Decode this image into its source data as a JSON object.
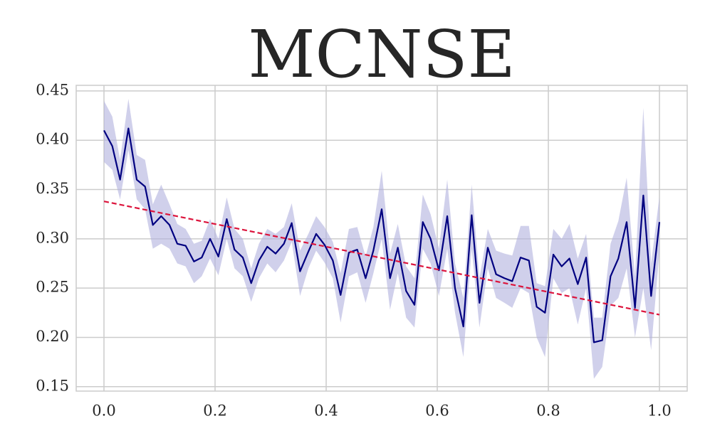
{
  "chart_data": {
    "type": "line",
    "title": "MCNSE",
    "xlim": [
      -0.05,
      1.05
    ],
    "ylim": [
      0.1455,
      0.4557
    ],
    "xticks": [
      {
        "value": 0,
        "label": "0.0"
      },
      {
        "value": 0.2,
        "label": "0.2"
      },
      {
        "value": 0.4,
        "label": "0.4"
      },
      {
        "value": 0.6,
        "label": "0.6"
      },
      {
        "value": 0.8,
        "label": "0.8"
      },
      {
        "value": 1,
        "label": "1.0"
      }
    ],
    "yticks": [
      0.15,
      {
        "value": 0.2,
        "label": "0.20"
      },
      0.25,
      {
        "value": 0.3,
        "label": "0.30"
      },
      0.35,
      {
        "value": 0.4,
        "label": "0.40"
      },
      0.45
    ],
    "grid": true,
    "x": [
      0,
      0.015,
      0.029,
      0.044,
      0.059,
      0.074,
      0.088,
      0.103,
      0.118,
      0.132,
      0.147,
      0.162,
      0.176,
      0.191,
      0.206,
      0.221,
      0.235,
      0.25,
      0.265,
      0.279,
      0.294,
      0.309,
      0.324,
      0.338,
      0.353,
      0.368,
      0.382,
      0.397,
      0.412,
      0.426,
      0.441,
      0.456,
      0.471,
      0.485,
      0.5,
      0.515,
      0.529,
      0.544,
      0.559,
      0.574,
      0.588,
      0.603,
      0.618,
      0.632,
      0.647,
      0.662,
      0.676,
      0.691,
      0.706,
      0.721,
      0.735,
      0.75,
      0.765,
      0.779,
      0.794,
      0.809,
      0.824,
      0.838,
      0.853,
      0.868,
      0.882,
      0.897,
      0.912,
      0.926,
      0.941,
      0.956,
      0.971,
      0.985,
      1
    ],
    "series": [
      {
        "color": "#000080",
        "band_color": "#b0b0dd",
        "values": [
          0.41,
          0.394,
          0.36,
          0.412,
          0.36,
          0.353,
          0.314,
          0.323,
          0.314,
          0.295,
          0.293,
          0.277,
          0.281,
          0.3,
          0.282,
          0.32,
          0.289,
          0.281,
          0.255,
          0.278,
          0.292,
          0.285,
          0.295,
          0.316,
          0.267,
          0.287,
          0.305,
          0.294,
          0.278,
          0.243,
          0.286,
          0.289,
          0.26,
          0.288,
          0.33,
          0.26,
          0.291,
          0.247,
          0.233,
          0.317,
          0.3,
          0.268,
          0.323,
          0.25,
          0.211,
          0.324,
          0.235,
          0.291,
          0.264,
          0.26,
          0.257,
          0.281,
          0.278,
          0.231,
          0.225,
          0.284,
          0.272,
          0.28,
          0.254,
          0.281,
          0.195,
          0.197,
          0.262,
          0.28,
          0.317,
          0.23,
          0.344,
          0.242,
          0.317
        ],
        "upper": [
          0.44,
          0.424,
          0.38,
          0.442,
          0.385,
          0.38,
          0.335,
          0.355,
          0.335,
          0.315,
          0.31,
          0.295,
          0.298,
          0.32,
          0.3,
          0.342,
          0.31,
          0.3,
          0.27,
          0.295,
          0.31,
          0.305,
          0.312,
          0.336,
          0.288,
          0.305,
          0.323,
          0.312,
          0.297,
          0.265,
          0.31,
          0.312,
          0.282,
          0.312,
          0.369,
          0.285,
          0.315,
          0.272,
          0.26,
          0.345,
          0.325,
          0.29,
          0.36,
          0.275,
          0.24,
          0.355,
          0.26,
          0.31,
          0.288,
          0.285,
          0.283,
          0.313,
          0.313,
          0.255,
          0.252,
          0.31,
          0.3,
          0.315,
          0.28,
          0.305,
          0.22,
          0.22,
          0.295,
          0.318,
          0.362,
          0.262,
          0.433,
          0.275,
          0.343
        ],
        "lower": [
          0.378,
          0.37,
          0.34,
          0.39,
          0.34,
          0.33,
          0.29,
          0.295,
          0.29,
          0.275,
          0.272,
          0.255,
          0.262,
          0.28,
          0.263,
          0.3,
          0.27,
          0.262,
          0.236,
          0.26,
          0.275,
          0.266,
          0.278,
          0.297,
          0.242,
          0.27,
          0.288,
          0.276,
          0.26,
          0.215,
          0.262,
          0.266,
          0.235,
          0.265,
          0.3,
          0.228,
          0.265,
          0.22,
          0.21,
          0.29,
          0.275,
          0.242,
          0.29,
          0.225,
          0.18,
          0.29,
          0.21,
          0.27,
          0.24,
          0.235,
          0.23,
          0.25,
          0.245,
          0.2,
          0.18,
          0.26,
          0.245,
          0.25,
          0.213,
          0.25,
          0.158,
          0.17,
          0.232,
          0.24,
          0.27,
          0.2,
          0.25,
          0.187,
          0.287
        ]
      }
    ],
    "trend": {
      "x": [
        0,
        1
      ],
      "values": [
        0.338,
        0.223
      ],
      "color": "#dc143c",
      "dashed": true
    }
  }
}
